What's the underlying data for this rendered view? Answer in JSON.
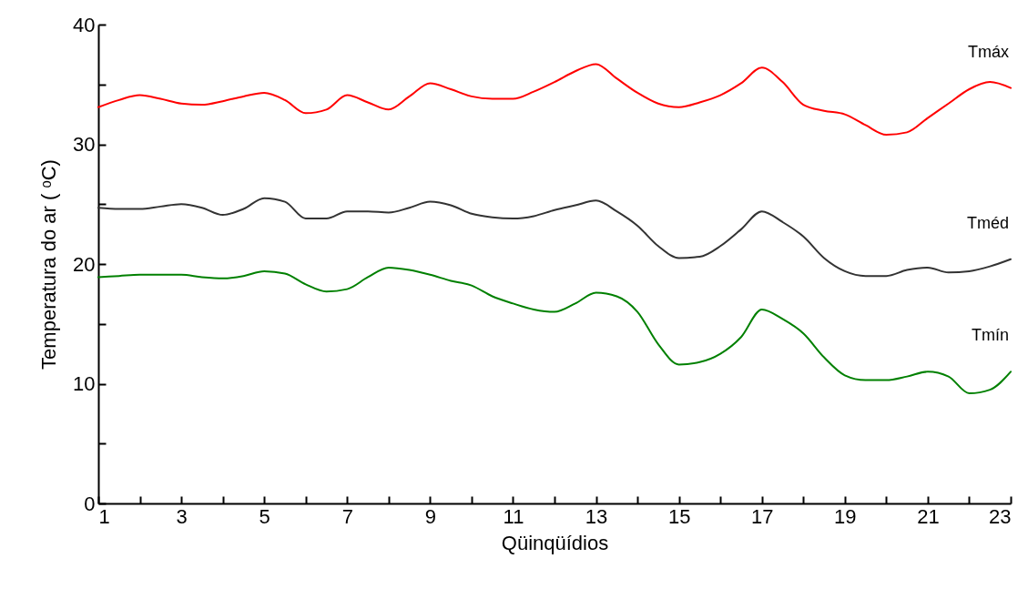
{
  "chart_data": {
    "type": "line",
    "xlabel": "Qüinqüídios",
    "ylabel": "Temperatura do ar ( ᵒC)",
    "x": [
      1,
      1.5,
      2,
      2.5,
      3,
      3.5,
      4,
      4.5,
      5,
      5.5,
      6,
      6.5,
      7,
      7.5,
      8,
      8.5,
      9,
      9.5,
      10,
      10.5,
      11,
      11.5,
      12,
      12.5,
      13,
      13.5,
      14,
      14.5,
      15,
      15.5,
      16,
      16.5,
      17,
      17.5,
      18,
      18.5,
      19,
      19.5,
      20,
      20.5,
      21,
      21.5,
      22,
      22.5,
      23
    ],
    "series": [
      {
        "name": "Tmáx",
        "color": "#ff0000",
        "values": [
          33.1,
          33.7,
          34.1,
          33.8,
          33.4,
          33.3,
          33.6,
          34.0,
          34.3,
          33.7,
          32.6,
          32.9,
          34.1,
          33.5,
          32.9,
          34.0,
          35.1,
          34.6,
          34.0,
          33.8,
          33.8,
          34.4,
          35.2,
          36.1,
          36.7,
          35.5,
          34.3,
          33.4,
          33.1,
          33.5,
          34.1,
          35.1,
          36.4,
          35.2,
          33.3,
          32.8,
          32.5,
          31.6,
          30.8,
          31.0,
          32.2,
          33.4,
          34.6,
          35.2,
          34.7
        ]
      },
      {
        "name": "Tméd",
        "color": "#333333",
        "values": [
          24.7,
          24.6,
          24.6,
          24.8,
          25.0,
          24.7,
          24.1,
          24.6,
          25.5,
          25.2,
          23.8,
          23.8,
          24.4,
          24.4,
          24.3,
          24.7,
          25.2,
          24.9,
          24.2,
          23.9,
          23.8,
          24.0,
          24.5,
          24.9,
          25.3,
          24.4,
          23.2,
          21.5,
          20.5,
          20.6,
          21.5,
          22.9,
          24.4,
          23.5,
          22.3,
          20.5,
          19.4,
          19.0,
          19.0,
          19.5,
          19.7,
          19.3,
          19.4,
          19.8,
          20.4
        ]
      },
      {
        "name": "Tmín",
        "color": "#008000",
        "values": [
          18.9,
          19.0,
          19.1,
          19.1,
          19.1,
          18.9,
          18.8,
          19.0,
          19.4,
          19.2,
          18.3,
          17.7,
          17.9,
          18.9,
          19.7,
          19.5,
          19.1,
          18.6,
          18.2,
          17.3,
          16.7,
          16.2,
          16.0,
          16.7,
          17.6,
          17.3,
          16.0,
          13.3,
          11.6,
          11.8,
          12.5,
          13.9,
          16.2,
          15.4,
          14.2,
          12.2,
          10.7,
          10.3,
          10.3,
          10.6,
          11.0,
          10.6,
          9.2,
          9.5,
          11.0
        ]
      }
    ],
    "xlim": [
      1,
      23
    ],
    "xticks": [
      1,
      {
        "value": 2,
        "label": null
      },
      3,
      {
        "value": 4,
        "label": null
      },
      5,
      {
        "value": 6,
        "label": null
      },
      7,
      {
        "value": 8,
        "label": null
      },
      9,
      {
        "value": 10,
        "label": null
      },
      11,
      {
        "value": 12,
        "label": null
      },
      13,
      {
        "value": 14,
        "label": null
      },
      15,
      {
        "value": 16,
        "label": null
      },
      17,
      {
        "value": 18,
        "label": null
      },
      19,
      {
        "value": 20,
        "label": null
      },
      21,
      {
        "value": 22,
        "label": null
      },
      23
    ],
    "ylim": [
      0,
      40
    ],
    "yticks": [
      0,
      {
        "value": 5,
        "label": null
      },
      10,
      {
        "value": 15,
        "label": null
      },
      20,
      {
        "value": 25,
        "label": null
      },
      30,
      {
        "value": 35,
        "label": null
      },
      40
    ],
    "grid": false,
    "legend": false,
    "marker": "none",
    "line_style": "solid"
  }
}
